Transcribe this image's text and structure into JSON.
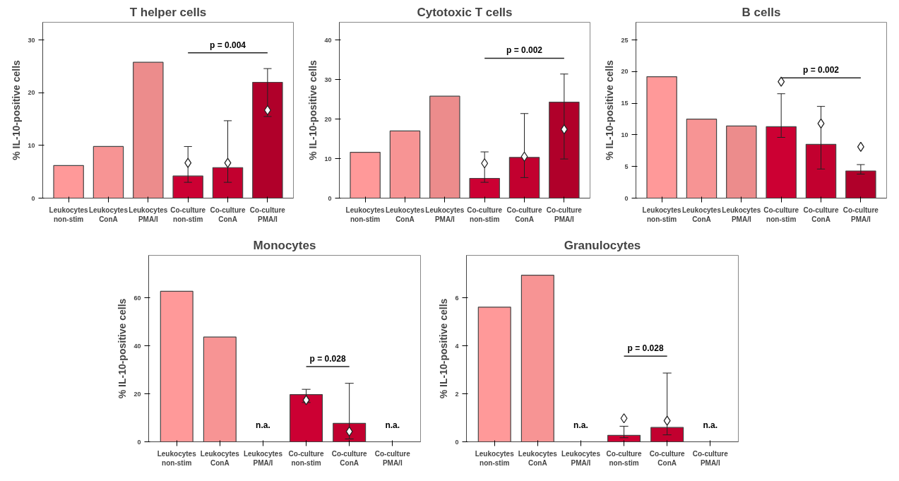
{
  "chart_data": [
    {
      "type": "bar",
      "title": "T helper cells",
      "ylabel": "% IL-10-positive cells",
      "categories": [
        "Leukocytes\nnon-stim",
        "Leukocytes\nConA",
        "Leukocytes\nPMA/I",
        "Co-culture\nnon-stim",
        "Co-culture\nConA",
        "Co-culture\nPMA/I"
      ],
      "series": [
        {
          "values": [
            6.2,
            9.8,
            25.8,
            4.2,
            5.8,
            22.0
          ],
          "colors": [
            "#ff9999",
            "#f79494",
            "#ec8c8c",
            "#cc0033",
            "#c2002f",
            "#b0002a"
          ],
          "errors": [
            null,
            null,
            null,
            [
              3.0,
              9.8
            ],
            [
              3.0,
              14.7
            ],
            [
              15.5,
              24.6
            ]
          ]
        },
        {
          "type": "scatter",
          "x": [
            "Co-culture\nnon-stim",
            "Co-culture\nConA",
            "Co-culture\nPMA/I"
          ],
          "values": [
            6.7,
            6.7,
            16.7
          ],
          "color": "#ffffff",
          "marker": "diamond"
        }
      ],
      "ylim": [
        0,
        33.4
      ],
      "yticks": [
        0,
        10,
        20,
        30
      ],
      "annotations": [
        "p = 0.004"
      ]
    },
    {
      "type": "bar",
      "title": "Cytotoxic T cells",
      "ylabel": "% IL-10-positive cells",
      "categories": [
        "Leukocytes\nnon-stim",
        "Leukocytes\nConA",
        "Leukocytes\nPMA/I",
        "Co-culture\nnon-stim",
        "Co-culture\nConA",
        "Co-culture\nPMA/I"
      ],
      "series": [
        {
          "values": [
            11.6,
            17.0,
            25.8,
            5.0,
            10.3,
            24.3
          ],
          "colors": [
            "#ff9999",
            "#f79494",
            "#ec8c8c",
            "#cc0033",
            "#c2002f",
            "#b0002a"
          ],
          "errors": [
            null,
            null,
            null,
            [
              4.0,
              11.7
            ],
            [
              5.2,
              21.4
            ],
            [
              9.9,
              31.4
            ]
          ]
        },
        {
          "type": "scatter",
          "x": [
            "Co-culture\nnon-stim",
            "Co-culture\nConA",
            "Co-culture\nPMA/I"
          ],
          "values": [
            8.8,
            10.5,
            17.4
          ],
          "color": "#ffffff",
          "marker": "diamond"
        }
      ],
      "ylim": [
        0,
        44.5
      ],
      "yticks": [
        0,
        10,
        20,
        30,
        40
      ],
      "annotations": [
        "p = 0.002"
      ]
    },
    {
      "type": "bar",
      "title": "B cells",
      "ylabel": "% IL-10-positive cells",
      "categories": [
        "Leukocytes\nnon-stim",
        "Leukocytes\nConA",
        "Leukocytes\nPMA/I",
        "Co-culture\nnon-stim",
        "Co-culture\nConA",
        "Co-culture\nPMA/I"
      ],
      "series": [
        {
          "values": [
            19.2,
            12.5,
            11.4,
            11.3,
            8.5,
            4.3
          ],
          "colors": [
            "#ff9999",
            "#f79494",
            "#ec8c8c",
            "#cc0033",
            "#c2002f",
            "#b0002a"
          ],
          "errors": [
            null,
            null,
            null,
            [
              9.6,
              16.5
            ],
            [
              4.6,
              14.5
            ],
            [
              3.8,
              5.3
            ]
          ]
        },
        {
          "type": "scatter",
          "x": [
            "Co-culture\nnon-stim",
            "Co-culture\nConA",
            "Co-culture\nPMA/I"
          ],
          "values": [
            18.4,
            11.8,
            8.1
          ],
          "color": "#ffffff",
          "marker": "diamond"
        }
      ],
      "ylim": [
        0,
        27.8
      ],
      "yticks": [
        0,
        5,
        10,
        15,
        20,
        25
      ],
      "annotations": [
        "p = 0.002"
      ]
    },
    {
      "type": "bar",
      "title": "Monocytes",
      "ylabel": "% IL-10-positive cells",
      "categories": [
        "Leukocytes\nnon-stim",
        "Leukocytes\nConA",
        "Leukocytes\nPMA/I",
        "Co-culture\nnon-stim",
        "Co-culture\nConA",
        "Co-culture\nPMA/I"
      ],
      "series": [
        {
          "values": [
            62.8,
            43.7,
            null,
            19.7,
            7.7,
            null
          ],
          "colors": [
            "#ff9999",
            "#f79494",
            "#ec8c8c",
            "#cc0033",
            "#c2002f",
            "#b0002a"
          ],
          "errors": [
            null,
            null,
            null,
            [
              16.4,
              21.9
            ],
            [
              1.2,
              24.4
            ],
            null
          ]
        },
        {
          "type": "scatter",
          "x": [
            "Co-culture\nnon-stim",
            "Co-culture\nConA"
          ],
          "values": [
            17.4,
            4.3
          ],
          "color": "#ffffff",
          "marker": "diamond"
        }
      ],
      "ylim": [
        0,
        77.8
      ],
      "yticks": [
        0,
        20,
        40,
        60
      ],
      "annotations": [
        "p = 0.028",
        "n.a.",
        "n.a."
      ]
    },
    {
      "type": "bar",
      "title": "Granulocytes",
      "ylabel": "% IL-10-positive cells",
      "categories": [
        "Leukocytes\nnon-stim",
        "Leukocytes\nConA",
        "Leukocytes\nPMA/I",
        "Co-culture\nnon-stim",
        "Co-culture\nConA",
        "Co-culture\nPMA/I"
      ],
      "series": [
        {
          "values": [
            5.62,
            6.95,
            null,
            0.27,
            0.6,
            null
          ],
          "colors": [
            "#ff9999",
            "#f79494",
            "#ec8c8c",
            "#cc0033",
            "#c2002f",
            "#b0002a"
          ],
          "errors": [
            null,
            null,
            null,
            [
              0.17,
              0.65
            ],
            [
              0.29,
              2.87
            ],
            null
          ]
        },
        {
          "type": "scatter",
          "x": [
            "Co-culture\nnon-stim",
            "Co-culture\nConA"
          ],
          "values": [
            0.98,
            0.88
          ],
          "color": "#ffffff",
          "marker": "diamond"
        }
      ],
      "ylim": [
        0,
        7.78
      ],
      "yticks": [
        0,
        2,
        4,
        6
      ],
      "annotations": [
        "p = 0.028",
        "n.a.",
        "n.a."
      ]
    }
  ]
}
